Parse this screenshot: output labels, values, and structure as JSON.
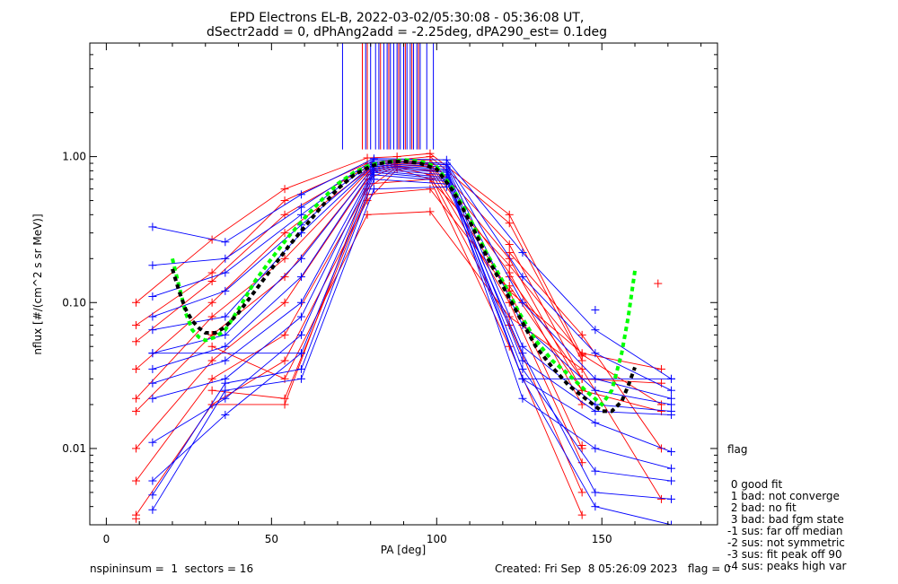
{
  "chart_data": {
    "type": "scatter",
    "title": "EPD Electrons EL-B, 2022-03-02/05:30:08 - 05:36:08 UT,",
    "subtitle": "dSectr2add = 0, dPhAng2add = -2.25deg, dPA290_est=   0.1deg",
    "xlabel": "PA [deg]",
    "ylabel": "nflux [#/(cm^2 s sr MeV)]",
    "xlim": [
      -5,
      185
    ],
    "ylim": [
      0.003,
      6.0
    ],
    "yscale": "log",
    "x_ticks": [
      0,
      50,
      100,
      150
    ],
    "x_tick_labels": [
      "0",
      "50",
      "100",
      "150"
    ],
    "y_ticks": [
      0.01,
      0.1,
      1.0
    ],
    "y_tick_labels": [
      "0.01",
      "0.10",
      "1.00"
    ],
    "colors": {
      "red": "#ff0000",
      "blue": "#0000ff",
      "green": "#00ff00",
      "black": "#000000"
    },
    "series": [
      {
        "color": "#ff0000",
        "marker": "plus",
        "sweeps": [
          {
            "x": [
              9,
              32,
              54,
              79,
              88,
              98,
              122,
              144
            ],
            "y": [
              0.1,
              0.27,
              0.6,
              0.98,
              1.0,
              1.05,
              0.4,
              0.043
            ]
          },
          {
            "x": [
              9,
              32,
              54,
              79,
              88,
              98,
              122,
              144
            ],
            "y": [
              0.07,
              0.16,
              0.5,
              0.9,
              0.95,
              1.0,
              0.35,
              0.04
            ]
          },
          {
            "x": [
              9,
              32,
              54,
              79,
              88,
              98,
              122,
              144
            ],
            "y": [
              0.054,
              0.14,
              0.4,
              0.85,
              0.93,
              0.95,
              0.25,
              0.03
            ]
          },
          {
            "x": [
              9,
              32,
              54,
              79,
              88,
              98,
              122,
              144
            ],
            "y": [
              0.035,
              0.1,
              0.3,
              0.8,
              0.92,
              0.9,
              0.2,
              0.025
            ]
          },
          {
            "x": [
              9,
              32,
              54,
              79,
              88,
              98,
              122,
              144
            ],
            "y": [
              0.022,
              0.08,
              0.2,
              0.78,
              0.9,
              0.88,
              0.16,
              0.02
            ]
          },
          {
            "x": [
              9,
              32,
              54,
              79,
              88,
              98,
              122,
              144
            ],
            "y": [
              0.018,
              0.06,
              0.15,
              0.75,
              0.88,
              0.85,
              0.12,
              0.01
            ]
          },
          {
            "x": [
              9,
              32,
              54,
              79,
              88,
              98,
              122,
              144
            ],
            "y": [
              0.01,
              0.04,
              0.1,
              0.7,
              0.86,
              0.8,
              0.1,
              0.008
            ]
          },
          {
            "x": [
              9,
              32,
              54,
              79,
              88,
              98,
              122,
              144
            ],
            "y": [
              0.006,
              0.03,
              0.06,
              0.6,
              0.85,
              0.75,
              0.07,
              0.005
            ]
          },
          {
            "x": [
              9,
              32,
              54,
              79,
              88,
              98,
              122,
              144
            ],
            "y": [
              0.0035,
              0.02,
              0.04,
              0.5,
              0.82,
              0.7,
              0.05,
              0.0035
            ]
          },
          {
            "x": [
              32,
              54,
              79,
              98,
              122,
              144,
              168
            ],
            "y": [
              0.05,
              0.03,
              0.4,
              0.42,
              0.08,
              0.035,
              0.0045
            ]
          },
          {
            "x": [
              32,
              54,
              79,
              98,
              122,
              144,
              168
            ],
            "y": [
              0.025,
              0.022,
              0.55,
              0.6,
              0.12,
              0.045,
              0.035
            ]
          },
          {
            "x": [
              32,
              54,
              79,
              98,
              122,
              144,
              168
            ],
            "y": [
              0.02,
              0.02,
              0.65,
              0.7,
              0.18,
              0.044,
              0.02
            ]
          },
          {
            "x": [
              122,
              144,
              168
            ],
            "y": [
              0.22,
              0.06,
              0.01
            ]
          },
          {
            "x": [
              122,
              144,
              168
            ],
            "y": [
              0.15,
              0.03,
              0.028
            ]
          },
          {
            "x": [
              122,
              144,
              168
            ],
            "y": [
              0.13,
              0.025,
              0.018
            ]
          }
        ],
        "isolated": [
          [
            167,
            0.135
          ],
          [
            144,
            0.0105
          ],
          [
            9,
            0.0033
          ]
        ]
      },
      {
        "color": "#0000ff",
        "marker": "plus",
        "sweeps": [
          {
            "x": [
              14,
              36,
              59,
              81,
              103,
              126,
              148,
              171
            ],
            "y": [
              0.33,
              0.26,
              0.55,
              0.97,
              0.95,
              0.22,
              0.065,
              0.03
            ]
          },
          {
            "x": [
              14,
              36,
              59,
              81,
              103,
              126,
              148,
              171
            ],
            "y": [
              0.18,
              0.2,
              0.45,
              0.95,
              0.9,
              0.15,
              0.045,
              0.025
            ]
          },
          {
            "x": [
              14,
              36,
              59,
              81,
              103,
              126,
              148,
              171
            ],
            "y": [
              0.11,
              0.16,
              0.4,
              0.92,
              0.88,
              0.1,
              0.03,
              0.022
            ]
          },
          {
            "x": [
              14,
              36,
              59,
              81,
              103,
              126,
              148,
              171
            ],
            "y": [
              0.08,
              0.12,
              0.34,
              0.9,
              0.85,
              0.07,
              0.025,
              0.02
            ]
          },
          {
            "x": [
              14,
              36,
              59,
              81,
              103,
              126,
              148,
              171
            ],
            "y": [
              0.065,
              0.08,
              0.3,
              0.88,
              0.82,
              0.05,
              0.02,
              0.018
            ]
          },
          {
            "x": [
              14,
              36,
              59,
              81,
              103,
              126,
              148,
              171
            ],
            "y": [
              0.045,
              0.06,
              0.2,
              0.86,
              0.8,
              0.04,
              0.018,
              0.017
            ]
          },
          {
            "x": [
              14,
              36,
              59,
              81,
              103,
              126,
              148,
              171
            ],
            "y": [
              0.035,
              0.05,
              0.15,
              0.84,
              0.78,
              0.03,
              0.015,
              0.0095
            ]
          },
          {
            "x": [
              14,
              36,
              59,
              81,
              103,
              126,
              148,
              171
            ],
            "y": [
              0.028,
              0.04,
              0.1,
              0.82,
              0.75,
              0.022,
              0.01,
              0.0073
            ]
          },
          {
            "x": [
              14,
              36,
              59,
              81,
              103,
              126,
              148,
              171
            ],
            "y": [
              0.022,
              0.03,
              0.08,
              0.8,
              0.72,
              0.035,
              0.007,
              0.006
            ]
          },
          {
            "x": [
              14,
              36,
              59,
              81,
              103,
              126,
              148,
              171
            ],
            "y": [
              0.011,
              0.022,
              0.06,
              0.78,
              0.7,
              0.045,
              0.005,
              0.0045
            ]
          },
          {
            "x": [
              14,
              36,
              59,
              81,
              103,
              126,
              148,
              171
            ],
            "y": [
              0.006,
              0.017,
              0.045,
              0.75,
              0.68,
              0.03,
              0.004,
              0.003
            ]
          },
          {
            "x": [
              14,
              36,
              59,
              81,
              103
            ],
            "y": [
              0.0048,
              0.028,
              0.035,
              0.7,
              0.65
            ]
          },
          {
            "x": [
              14,
              36,
              59,
              81,
              103
            ],
            "y": [
              0.0038,
              0.025,
              0.03,
              0.6,
              0.62
            ]
          },
          {
            "x": [
              14,
              59
            ],
            "y": [
              0.045,
              0.045
            ]
          },
          {
            "x": [
              126,
              171
            ],
            "y": [
              0.03,
              0.03
            ]
          }
        ],
        "isolated": [
          [
            148,
            0.089
          ]
        ]
      },
      {
        "name": "",
        "color": "#00ff00",
        "style": "dashed-thick",
        "x": [
          20,
          22,
          24,
          26,
          28,
          30,
          33,
          36,
          40,
          45,
          50,
          55,
          60,
          65,
          70,
          75,
          80,
          85,
          90,
          95,
          100,
          105,
          110,
          115,
          120,
          125,
          130,
          135,
          140,
          145,
          150,
          153,
          156,
          158,
          160
        ],
        "y": [
          0.2,
          0.13,
          0.085,
          0.065,
          0.058,
          0.055,
          0.058,
          0.065,
          0.09,
          0.14,
          0.2,
          0.28,
          0.38,
          0.5,
          0.65,
          0.78,
          0.88,
          0.92,
          0.95,
          0.93,
          0.85,
          0.6,
          0.38,
          0.22,
          0.14,
          0.085,
          0.055,
          0.04,
          0.032,
          0.025,
          0.02,
          0.025,
          0.045,
          0.08,
          0.165
        ]
      },
      {
        "name": "",
        "color": "#000000",
        "style": "dashed-thick",
        "x": [
          20,
          22,
          24,
          26,
          28,
          30,
          33,
          36,
          40,
          45,
          50,
          55,
          60,
          65,
          70,
          75,
          80,
          85,
          90,
          95,
          100,
          105,
          110,
          115,
          120,
          125,
          130,
          135,
          140,
          145,
          150,
          153,
          156,
          158,
          160
        ],
        "y": [
          0.17,
          0.12,
          0.09,
          0.075,
          0.067,
          0.062,
          0.062,
          0.068,
          0.085,
          0.12,
          0.17,
          0.24,
          0.33,
          0.45,
          0.6,
          0.75,
          0.86,
          0.92,
          0.93,
          0.9,
          0.82,
          0.58,
          0.36,
          0.21,
          0.13,
          0.08,
          0.05,
          0.036,
          0.027,
          0.022,
          0.018,
          0.018,
          0.021,
          0.027,
          0.036
        ]
      }
    ],
    "pa90_lines": {
      "blue_x": [
        71.5,
        78.5,
        80,
        81.5,
        82.5,
        84,
        85,
        86,
        87,
        88,
        89,
        90,
        91,
        92,
        93,
        94,
        95,
        97,
        99
      ],
      "red_x": [
        77.5,
        79,
        83,
        85.5,
        88.5,
        90.5,
        92.5,
        94.5
      ],
      "y_top": 6.0,
      "y_bottom": 1.12
    },
    "legend": {
      "title": "flag",
      "entries": [
        " 0 good fit",
        " 1 bad: not converge",
        " 2 bad: no fit",
        " 3 bad: bad fgm state",
        "-1 sus: far off median",
        "-2 sus: not symmetric",
        "-3 sus: fit peak off 90",
        "-4 sus: peaks high var"
      ]
    }
  },
  "footer": {
    "left": "nspininsum =  1  sectors = 16",
    "right": "Created: Fri Sep  8 05:26:09 2023   flag = 0"
  }
}
